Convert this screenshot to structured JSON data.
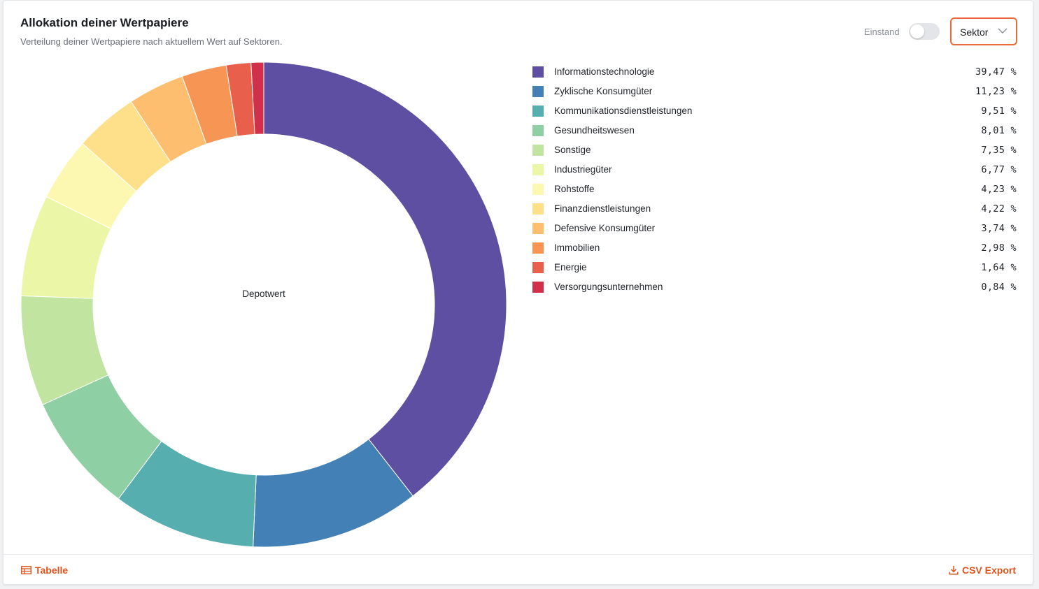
{
  "header": {
    "title": "Allokation deiner Wertpapiere",
    "subtitle": "Verteilung deiner Wertpapiere nach aktuellem Wert auf Sektoren."
  },
  "controls": {
    "toggle_label": "Einstand",
    "toggle_on": false,
    "select_value": "Sektor"
  },
  "chart_data": {
    "type": "pie",
    "variant": "donut",
    "center_label": "Depotwert",
    "categories": [
      "Informationstechnologie",
      "Zyklische Konsumgüter",
      "Kommunikationsdienstleistungen",
      "Gesundheitswesen",
      "Sonstige",
      "Industriegüter",
      "Rohstoffe",
      "Finanzdienstleistungen",
      "Defensive Konsumgüter",
      "Immobilien",
      "Energie",
      "Versorgungsunternehmen"
    ],
    "values": [
      39.47,
      11.23,
      9.51,
      8.01,
      7.35,
      6.77,
      4.23,
      4.22,
      3.74,
      2.98,
      1.64,
      0.84
    ],
    "value_labels": [
      "39,47 %",
      "11,23 %",
      "9,51 %",
      "8,01 %",
      "7,35 %",
      "6,77 %",
      "4,23 %",
      "4,22 %",
      "3,74 %",
      "2,98 %",
      "1,64 %",
      "0,84 %"
    ],
    "colors": [
      "#5e4fa2",
      "#4380b6",
      "#56aeae",
      "#8ecfa4",
      "#c1e5a1",
      "#ebf6a7",
      "#fcf8b2",
      "#fee08b",
      "#fdbf6f",
      "#f79554",
      "#e8604b",
      "#d1304a"
    ],
    "legend_position": "right"
  },
  "footer": {
    "table_label": "Tabelle",
    "csv_label": "CSV Export"
  }
}
